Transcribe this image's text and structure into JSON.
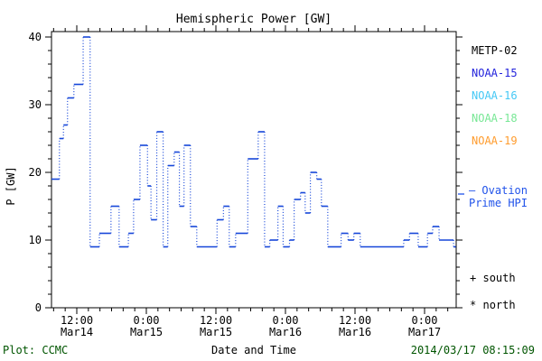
{
  "title": "Hemispheric Power [GW]",
  "colors": {
    "curve": "#1646D9",
    "ovation_text": "#2153EA",
    "frame": "#000000",
    "footer_green": "#005500"
  },
  "axes": {
    "ylabel": "P [GW]",
    "y_ticks": [
      0,
      10,
      20,
      30,
      40
    ],
    "y_minor_step": 2,
    "x_major_ticks": [
      {
        "t": 12,
        "time": "12:00",
        "date": "Mar14"
      },
      {
        "t": 24,
        "time": "0:00",
        "date": "Mar15"
      },
      {
        "t": 36,
        "time": "12:00",
        "date": "Mar15"
      },
      {
        "t": 48,
        "time": "0:00",
        "date": "Mar16"
      },
      {
        "t": 60,
        "time": "12:00",
        "date": "Mar16"
      },
      {
        "t": 72,
        "time": "0:00",
        "date": "Mar17"
      }
    ],
    "x_minor_step_hours": 2
  },
  "legend": {
    "satellites": [
      {
        "id": "metp-02",
        "label": "METP-02",
        "color": "#000000"
      },
      {
        "id": "noaa-15",
        "label": "NOAA-15",
        "color": "#2323DC"
      },
      {
        "id": "noaa-16",
        "label": "NOAA-16",
        "color": "#44C8F5"
      },
      {
        "id": "noaa-18",
        "label": "NOAA-18",
        "color": "#77E795"
      },
      {
        "id": "noaa-19",
        "label": "NOAA-19",
        "color": "#FF9C2E"
      }
    ],
    "ovation": {
      "line1": "— Ovation",
      "line2": "Prime HPI"
    },
    "markers": [
      {
        "marker": "+",
        "label": "south"
      },
      {
        "marker": "*",
        "label": "north"
      }
    ]
  },
  "footer": {
    "credit": "Plot: CCMC",
    "xlabel": "Date and Time",
    "timestamp": "2014/03/17 08:15:09"
  },
  "chart_data": {
    "type": "line",
    "style": "step-dotted-risers",
    "title": "Hemispheric Power [GW]",
    "xlabel": "Date and Time",
    "ylabel": "P [GW]",
    "ylim": [
      0,
      40
    ],
    "grid": false,
    "legend_position": "right",
    "x_unit": "hours since 2014-03-14 00:00",
    "x_range": [
      7.4,
      77.4
    ],
    "x_tick_labels": [
      "12:00 Mar14",
      "0:00 Mar15",
      "12:00 Mar15",
      "0:00 Mar16",
      "12:00 Mar16",
      "0:00 Mar17"
    ],
    "series": [
      {
        "name": "Ovation Prime HPI",
        "color": "#1646D9",
        "x_end": 77.4,
        "step_points": [
          [
            7.4,
            19
          ],
          [
            9.0,
            25
          ],
          [
            9.7,
            27
          ],
          [
            10.4,
            31
          ],
          [
            11.5,
            33
          ],
          [
            13.1,
            40
          ],
          [
            14.3,
            9
          ],
          [
            15.9,
            11
          ],
          [
            17.9,
            15
          ],
          [
            19.3,
            9
          ],
          [
            20.9,
            11
          ],
          [
            21.8,
            16
          ],
          [
            22.9,
            24
          ],
          [
            24.2,
            18
          ],
          [
            24.8,
            13
          ],
          [
            25.8,
            26
          ],
          [
            26.9,
            9
          ],
          [
            27.7,
            21
          ],
          [
            28.8,
            23
          ],
          [
            29.7,
            15
          ],
          [
            30.5,
            24
          ],
          [
            31.6,
            12
          ],
          [
            32.7,
            9
          ],
          [
            36.2,
            13
          ],
          [
            37.3,
            15
          ],
          [
            38.3,
            9
          ],
          [
            39.4,
            11
          ],
          [
            41.5,
            22
          ],
          [
            43.3,
            26
          ],
          [
            44.4,
            9
          ],
          [
            45.3,
            10
          ],
          [
            46.7,
            15
          ],
          [
            47.6,
            9
          ],
          [
            48.7,
            10
          ],
          [
            49.5,
            16
          ],
          [
            50.6,
            17
          ],
          [
            51.4,
            14
          ],
          [
            52.3,
            20
          ],
          [
            53.4,
            19
          ],
          [
            54.2,
            15
          ],
          [
            55.3,
            9
          ],
          [
            57.6,
            11
          ],
          [
            58.8,
            10
          ],
          [
            59.8,
            11
          ],
          [
            60.9,
            9
          ],
          [
            68.4,
            10
          ],
          [
            69.4,
            11
          ],
          [
            70.9,
            9
          ],
          [
            72.5,
            11
          ],
          [
            73.4,
            12
          ],
          [
            74.5,
            10
          ],
          [
            77.0,
            9
          ]
        ]
      }
    ]
  }
}
